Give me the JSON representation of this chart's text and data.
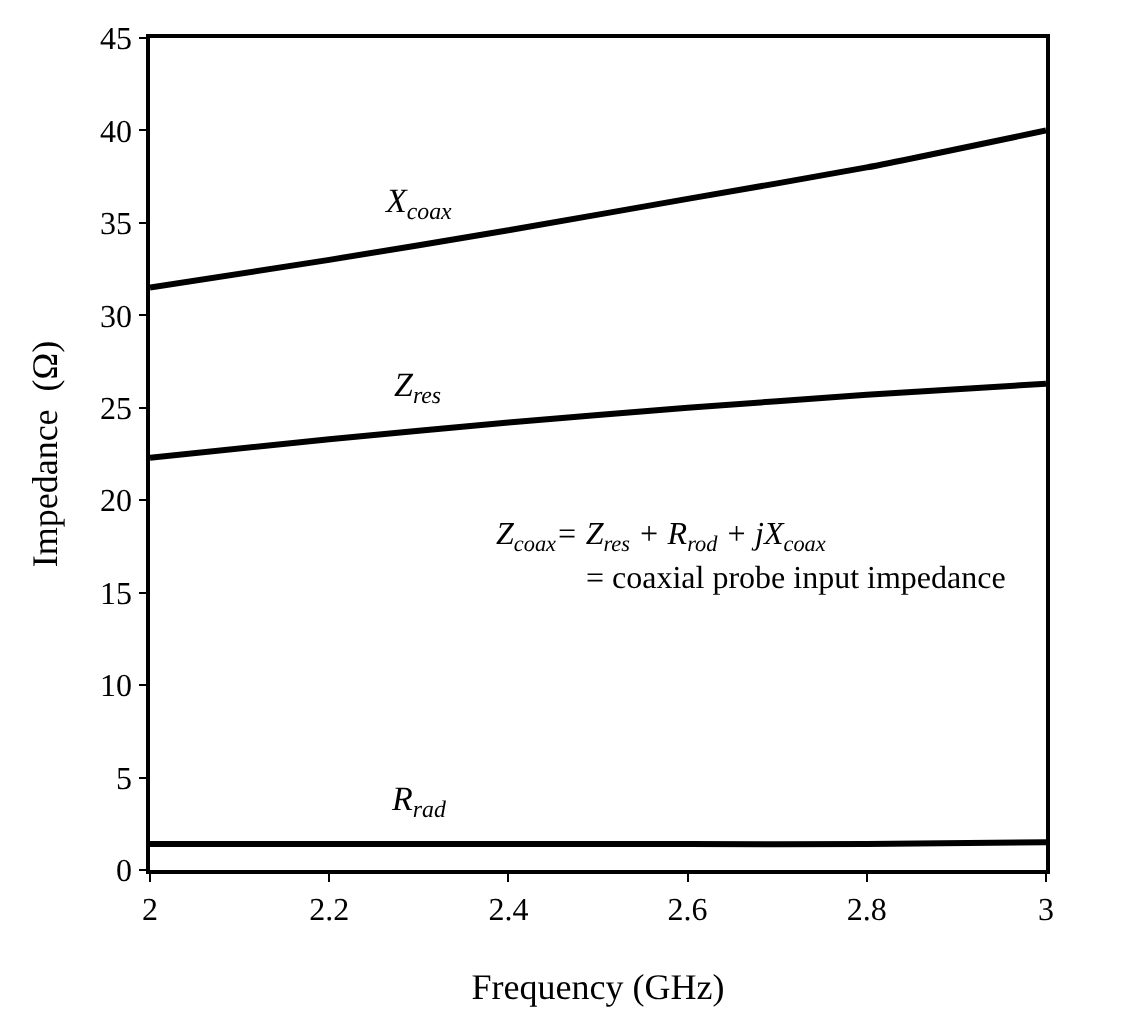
{
  "chart_data": {
    "type": "line",
    "xlabel": "Frequency (GHz)",
    "ylabel": "Impedance  (Ω)",
    "x": [
      2,
      2.2,
      2.4,
      2.6,
      2.8,
      3
    ],
    "series": [
      {
        "name": "X$_{coax}$",
        "color": "#000000",
        "values": [
          31.5,
          33.0,
          34.6,
          36.3,
          38.0,
          40.0
        ]
      },
      {
        "name": "Z$_{res}$",
        "color": "#000000",
        "values": [
          22.3,
          23.3,
          24.2,
          25.0,
          25.7,
          26.3
        ]
      },
      {
        "name": "R$_{rad}$",
        "color": "#000000",
        "values": [
          1.4,
          1.4,
          1.4,
          1.4,
          1.4,
          1.5
        ]
      }
    ],
    "annotations": [
      "Z$_{coax}$= Z$_{res}$ + R$_{rod}$ + jX$_{coax}$",
      "= coaxial probe input impedance"
    ],
    "xlim": [
      2,
      3
    ],
    "xticks": [
      2,
      2.2,
      2.4,
      2.6,
      2.8,
      3
    ],
    "ylim": [
      0,
      45
    ],
    "yticks": [
      0,
      5,
      10,
      15,
      20,
      25,
      30,
      35,
      40,
      45
    ],
    "grid": false,
    "legend": false,
    "marker": "none",
    "line_style": "solid"
  }
}
